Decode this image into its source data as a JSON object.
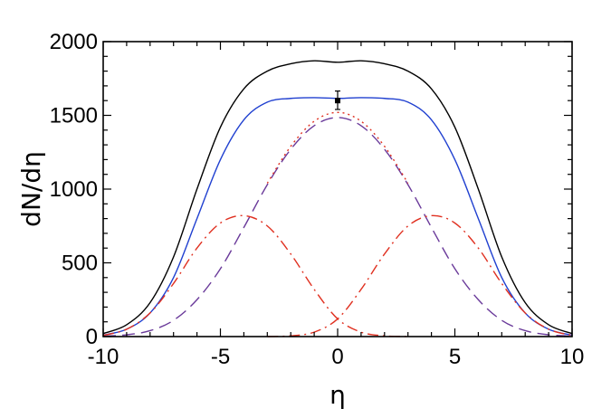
{
  "chart_data": {
    "type": "line",
    "title": "",
    "xlabel": "η",
    "ylabel": "dN/dη",
    "xlim": [
      -10,
      10
    ],
    "ylim": [
      0,
      2000
    ],
    "x_ticks": [
      -10,
      -5,
      0,
      5,
      10
    ],
    "x_tick_labels": [
      "-10",
      "-5",
      "0",
      "5",
      "10"
    ],
    "y_ticks": [
      0,
      500,
      1000,
      1500,
      2000
    ],
    "y_tick_labels": [
      "0",
      "500",
      "1000",
      "1500",
      "2000"
    ],
    "grid": false,
    "legend": "none",
    "series": [
      {
        "style": "solid",
        "color": "#000000",
        "x": [
          -10,
          -9,
          -8,
          -7,
          -6,
          -5,
          -4,
          -3,
          -2,
          -1,
          0,
          1,
          2,
          3,
          4,
          5,
          6,
          7,
          8,
          9,
          10
        ],
        "y": [
          20,
          80,
          230,
          540,
          1000,
          1420,
          1680,
          1800,
          1850,
          1870,
          1860,
          1870,
          1850,
          1800,
          1680,
          1420,
          1000,
          540,
          230,
          80,
          20
        ]
      },
      {
        "style": "solid",
        "color": "#2040d0",
        "x": [
          -10,
          -9,
          -8,
          -7,
          -6,
          -5,
          -4,
          -3,
          -2,
          -1,
          0,
          1,
          2,
          3,
          4,
          5,
          6,
          7,
          8,
          9,
          10
        ],
        "y": [
          10,
          50,
          160,
          400,
          800,
          1200,
          1470,
          1590,
          1615,
          1620,
          1615,
          1620,
          1615,
          1590,
          1470,
          1200,
          800,
          400,
          160,
          50,
          10
        ]
      },
      {
        "style": "dash",
        "color": "#6a3a9a",
        "x": [
          -10,
          -9,
          -8,
          -7,
          -6,
          -5,
          -4,
          -3,
          -2,
          -1,
          0,
          1,
          2,
          3,
          4,
          5,
          6,
          7,
          8,
          9,
          10
        ],
        "y": [
          3,
          12,
          40,
          110,
          250,
          460,
          740,
          1030,
          1270,
          1430,
          1485,
          1430,
          1270,
          1030,
          740,
          460,
          250,
          110,
          40,
          12,
          3
        ]
      },
      {
        "style": "dot",
        "color": "#e03020",
        "x": [
          -3,
          -2,
          -1,
          0,
          1,
          2,
          3
        ],
        "y": [
          1040,
          1290,
          1460,
          1520,
          1460,
          1290,
          1040
        ]
      },
      {
        "style": "dashdot",
        "color": "#e03020",
        "x": [
          -10,
          -9,
          -8,
          -7,
          -6,
          -5,
          -4,
          -3,
          -2,
          -1,
          0,
          1,
          2,
          3
        ],
        "y": [
          8,
          50,
          160,
          360,
          600,
          770,
          820,
          750,
          560,
          320,
          120,
          30,
          5,
          0
        ]
      },
      {
        "style": "dashdot",
        "color": "#e03020",
        "x": [
          -3,
          -2,
          -1,
          0,
          1,
          2,
          3,
          4,
          5,
          6,
          7,
          8,
          9,
          10
        ],
        "y": [
          0,
          5,
          30,
          120,
          320,
          560,
          750,
          820,
          770,
          600,
          360,
          160,
          50,
          8
        ]
      }
    ],
    "data_point": {
      "x": 0,
      "y": 1600,
      "yerr_low": 1540,
      "yerr_high": 1665
    }
  }
}
